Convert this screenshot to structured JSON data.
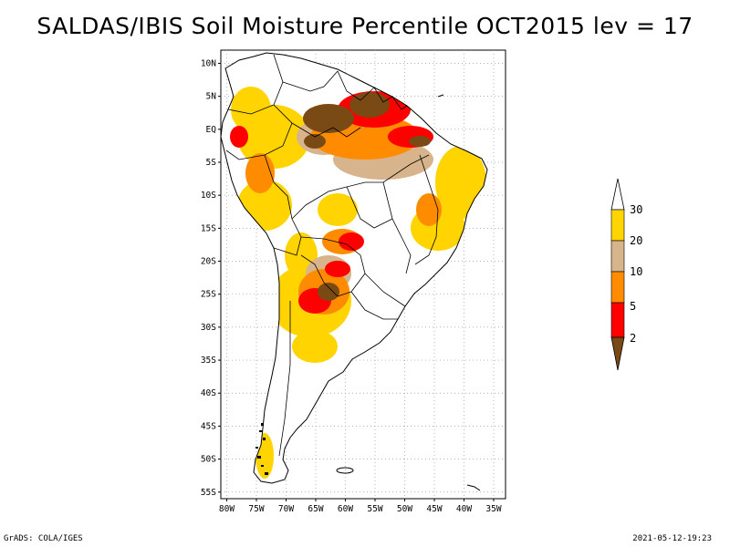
{
  "title": "SALDAS/IBIS Soil Moisture Percentile OCT2015 lev = 17",
  "footer": {
    "left": "GrADS: COLA/IGES",
    "right": "2021-05-12-19:23"
  },
  "map": {
    "lat_labels": [
      "10N",
      "5N",
      "EQ",
      "5S",
      "10S",
      "15S",
      "20S",
      "25S",
      "30S",
      "35S",
      "40S",
      "45S",
      "50S",
      "55S"
    ],
    "lat_values": [
      10,
      5,
      0,
      -5,
      -10,
      -15,
      -20,
      -25,
      -30,
      -35,
      -40,
      -45,
      -50,
      -55
    ],
    "lon_labels": [
      "80W",
      "75W",
      "70W",
      "65W",
      "60W",
      "55W",
      "50W",
      "45W",
      "40W",
      "35W"
    ],
    "lon_values": [
      -80,
      -75,
      -70,
      -65,
      -60,
      -55,
      -50,
      -45,
      -40,
      -35
    ],
    "extent": {
      "lon_min": -81,
      "lon_max": -33,
      "lat_min": -56,
      "lat_max": 12
    }
  },
  "colorbar": {
    "labels": [
      "30",
      "20",
      "10",
      "5",
      "2"
    ],
    "categories": [
      {
        "range": ">30",
        "color": "#ffffff"
      },
      {
        "range": "20-30",
        "color": "#ffd400"
      },
      {
        "range": "10-20",
        "color": "#d7b48c"
      },
      {
        "range": "5-10",
        "color": "#ff8c00"
      },
      {
        "range": "2-5",
        "color": "#ff0000"
      },
      {
        "range": "<2",
        "color": "#7a4a14"
      }
    ]
  },
  "colors": {
    "brown": "#7a4a14",
    "red": "#ff0000",
    "orange": "#ff8c00",
    "tan": "#d7b48c",
    "yellow": "#ffd400"
  }
}
